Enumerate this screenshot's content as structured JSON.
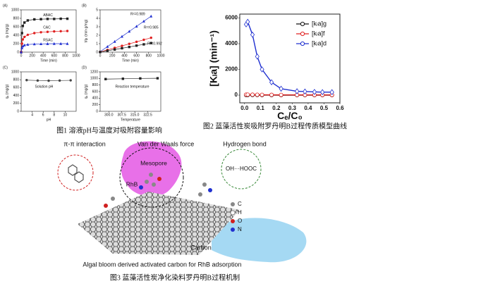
{
  "chart_data": [
    {
      "type": "line",
      "panel": "(A)",
      "xlabel": "Time (min)",
      "ylabel": "qₜ (mg/g)",
      "legend": "inline",
      "xlim": [
        0,
        1000
      ],
      "xticks": [
        0,
        200,
        400,
        600,
        800,
        1000
      ],
      "ylim": [
        0,
        1000
      ],
      "yticks": [
        0,
        200,
        400,
        600,
        800,
        1000
      ],
      "series": [
        {
          "name": "ABAC",
          "color": "#222222",
          "marker": "square",
          "x": [
            0,
            15,
            30,
            60,
            120,
            240,
            360,
            480,
            600,
            720,
            840
          ],
          "values": [
            0,
            450,
            620,
            700,
            750,
            775,
            780,
            785,
            785,
            790,
            790
          ]
        },
        {
          "name": "CAC",
          "color": "#e02020",
          "marker": "circle",
          "x": [
            0,
            15,
            30,
            60,
            120,
            240,
            360,
            480,
            600,
            720,
            840
          ],
          "values": [
            0,
            200,
            300,
            360,
            410,
            450,
            470,
            480,
            490,
            495,
            500
          ]
        },
        {
          "name": "RSAC",
          "color": "#2030d0",
          "marker": "triangle",
          "x": [
            0,
            15,
            30,
            60,
            120,
            240,
            360,
            480,
            600,
            720,
            840
          ],
          "values": [
            0,
            100,
            140,
            165,
            180,
            190,
            195,
            198,
            200,
            200,
            200
          ]
        }
      ]
    },
    {
      "type": "line",
      "panel": "(B)",
      "xlabel": "Time (min)",
      "ylabel": "t/qₜ (min·g/mg)",
      "xlim": [
        0,
        1000
      ],
      "xticks": [
        0,
        200,
        400,
        600,
        800,
        1000
      ],
      "ylim": [
        0,
        5
      ],
      "yticks": [
        0,
        1,
        2,
        3,
        4,
        5
      ],
      "annotations": [
        {
          "text": "R²=0.989",
          "color": "#2030d0"
        },
        {
          "text": "R²=0.985",
          "color": "#e02020"
        },
        {
          "text": "R²=0.992",
          "color": "#222222"
        }
      ],
      "series": [
        {
          "color": "#2030d0",
          "marker": "triangle",
          "x": [
            0,
            120,
            240,
            360,
            480,
            600,
            720,
            840
          ],
          "values": [
            0.05,
            0.65,
            1.25,
            1.85,
            2.45,
            3.05,
            3.65,
            4.25
          ]
        },
        {
          "color": "#e02020",
          "marker": "circle",
          "x": [
            0,
            120,
            240,
            360,
            480,
            600,
            720,
            840
          ],
          "values": [
            0.02,
            0.26,
            0.5,
            0.74,
            0.98,
            1.22,
            1.46,
            1.7
          ]
        },
        {
          "color": "#222222",
          "marker": "square",
          "x": [
            0,
            120,
            240,
            360,
            480,
            600,
            720,
            840
          ],
          "values": [
            0.01,
            0.16,
            0.31,
            0.46,
            0.61,
            0.77,
            0.92,
            1.07
          ]
        }
      ]
    },
    {
      "type": "line",
      "panel": "(C)",
      "xlabel": "pH",
      "ylabel": "qₑ (mg/g)",
      "note": "Solution pH",
      "xlim": [
        2,
        12
      ],
      "xticks": [
        4,
        6,
        8,
        10
      ],
      "ylim": [
        0,
        1000
      ],
      "yticks": [
        0,
        200,
        400,
        600,
        800,
        1000
      ],
      "series": [
        {
          "color": "#444444",
          "marker": "circle",
          "x": [
            3,
            5,
            7,
            9,
            11
          ],
          "values": [
            790,
            780,
            775,
            780,
            785
          ]
        }
      ]
    },
    {
      "type": "line",
      "panel": "(D)",
      "xlabel": "Temperature",
      "ylabel": "qₑ (mg/g)",
      "note": "Reaction temperature",
      "xlim": [
        295,
        330
      ],
      "xticks": [
        {
          "value": 300,
          "label": "300.0"
        },
        307.5,
        {
          "value": 315,
          "label": "315.0"
        },
        322.5
      ],
      "ylim": [
        0,
        1200
      ],
      "yticks": [
        0,
        200,
        400,
        600,
        800,
        1000,
        1200
      ],
      "series": [
        {
          "color": "#222222",
          "marker": "square",
          "x": [
            298.15,
            308.15,
            318.15,
            328.15
          ],
          "values": [
            980,
            990,
            1000,
            1005
          ]
        }
      ]
    },
    {
      "type": "line",
      "xlabel": "Cₑ/C₀",
      "ylabel": "[Kₗa] (min⁻¹)",
      "legend": "upper right",
      "xlim": [
        -0.03,
        0.6
      ],
      "xticks": [
        {
          "value": 0,
          "label": "0.0"
        },
        0.1,
        0.2,
        0.3,
        0.4,
        0.5,
        0.6
      ],
      "ylim": [
        -600,
        6300
      ],
      "yticks": [
        0,
        2000,
        4000,
        6000
      ],
      "series": [
        {
          "name": "[kₗa]g",
          "color": "#111111",
          "marker": "circle",
          "x": [
            0.01,
            0.02,
            0.05,
            0.08,
            0.11,
            0.17,
            0.23,
            0.33,
            0.38,
            0.44,
            0.49,
            0.55
          ],
          "values": [
            10,
            10,
            8,
            6,
            5,
            4,
            3,
            3,
            2,
            2,
            2,
            2
          ]
        },
        {
          "name": "[kₗa]f",
          "color": "#e02020",
          "marker": "circle",
          "x": [
            0.01,
            0.02,
            0.05,
            0.08,
            0.11,
            0.17,
            0.23,
            0.33,
            0.38,
            0.44,
            0.49,
            0.55
          ],
          "values": [
            40,
            40,
            35,
            30,
            25,
            20,
            18,
            15,
            15,
            12,
            12,
            12
          ]
        },
        {
          "name": "[kₗa]d",
          "color": "#2030d0",
          "marker": "diamond",
          "x": [
            0.01,
            0.02,
            0.05,
            0.08,
            0.11,
            0.17,
            0.23,
            0.33,
            0.38,
            0.44,
            0.49,
            0.55
          ],
          "values": [
            5500,
            5700,
            4700,
            3000,
            2000,
            1000,
            500,
            300,
            280,
            250,
            230,
            230
          ]
        }
      ]
    }
  ],
  "captions": {
    "fig1": "图1 溶液pH与温度对吸附容量影响",
    "fig2": "图2 蓝藻活性炭吸附罗丹明B过程传质模型曲线",
    "fig3": "图3 蓝藻活性炭净化染料罗丹明B过程机制"
  },
  "diagram": {
    "pi_pi": "π-π interaction",
    "vdw": "Van der Waals force",
    "hbond": "Hydrogen bond",
    "mesopore": "Mesopore",
    "rhb": "RhB",
    "hbond_pair": "OH···HOOC",
    "atoms": [
      "C",
      "H",
      "O",
      "N"
    ],
    "carbon": "Carbon",
    "description": "Algal bloom derived activated carbon for RhB adsorption"
  }
}
